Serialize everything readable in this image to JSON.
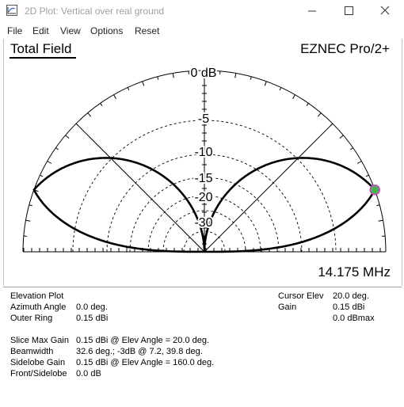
{
  "window": {
    "title": "2D Plot: Vertical over real ground",
    "icons": [
      "app-icon",
      "minimize-icon",
      "maximize-icon",
      "close-icon"
    ]
  },
  "menu": [
    "File",
    "Edit",
    "View",
    "Options",
    "Reset"
  ],
  "plot": {
    "title": "Total Field",
    "brand": "EZNEC Pro/2+",
    "frequency": "14.175 MHz",
    "ring_labels": [
      "0 dB",
      "-5",
      "-10",
      "-15",
      "-20",
      "-30"
    ],
    "cursor_marker_color": "#4caf50",
    "cursor_ring_color": "#cc44cc"
  },
  "info": {
    "left": [
      {
        "label": "Elevation Plot",
        "value": ""
      },
      {
        "label": "Azimuth Angle",
        "value": "0.0 deg."
      },
      {
        "label": "Outer Ring",
        "value": "0.15 dBi"
      },
      {
        "label": "Slice Max Gain",
        "value": "0.15 dBi @ Elev Angle = 20.0 deg."
      },
      {
        "label": "Beamwidth",
        "value": "32.6 deg.; -3dB @ 7.2, 39.8 deg."
      },
      {
        "label": "Sidelobe Gain",
        "value": "0.15 dBi @ Elev Angle = 160.0 deg."
      },
      {
        "label": "Front/Sidelobe",
        "value": "0.0 dB"
      }
    ],
    "right": [
      {
        "label": "Cursor Elev",
        "value": "20.0 deg."
      },
      {
        "label": "Gain",
        "value": "0.15 dBi"
      },
      {
        "label": "",
        "value": "0.0 dBmax"
      }
    ]
  }
}
